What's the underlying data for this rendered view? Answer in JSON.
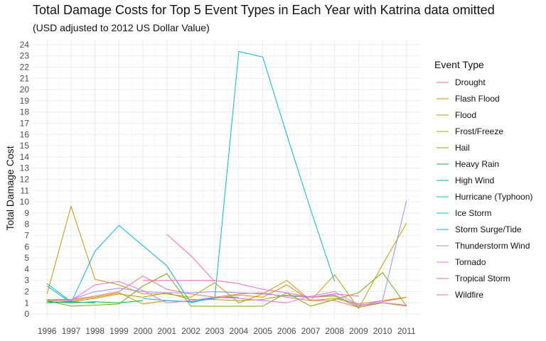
{
  "chart_data": {
    "type": "line",
    "title": "Total Damage Costs for Top 5 Event Types in Each Year with Katrina data omitted",
    "subtitle": "(USD adjusted to 2012 US Dollar Value)",
    "xlabel": "",
    "ylabel": "Total Damage Cost",
    "x": [
      1996,
      1997,
      1998,
      1999,
      2000,
      2001,
      2002,
      2003,
      2004,
      2005,
      2006,
      2007,
      2008,
      2009,
      2010,
      2011
    ],
    "ylim": [
      -0.5,
      24.5
    ],
    "xlim": [
      1995.4,
      2011.6
    ],
    "yticks": [
      0,
      1,
      2,
      3,
      4,
      5,
      6,
      7,
      8,
      9,
      10,
      11,
      12,
      13,
      14,
      15,
      16,
      17,
      18,
      19,
      20,
      21,
      22,
      23,
      24
    ],
    "grid": true,
    "legend": {
      "title": "Event Type",
      "position": "right"
    },
    "series": [
      {
        "name": "Drought",
        "color": "#F8766D",
        "points": [
          [
            1996,
            1.3
          ],
          [
            1997,
            1.3
          ],
          [
            1998,
            1.6
          ],
          [
            1999,
            2.0
          ],
          [
            2000,
            3.4
          ],
          [
            2001,
            2.2
          ],
          [
            2002,
            1.8
          ],
          [
            2003,
            1.5
          ],
          [
            2004,
            1.8
          ],
          [
            2005,
            1.9
          ],
          [
            2006,
            1.5
          ],
          [
            2007,
            1.2
          ],
          [
            2008,
            1.2
          ],
          [
            2009,
            0.6
          ],
          [
            2010,
            1.1
          ],
          [
            2011,
            1.5
          ]
        ]
      },
      {
        "name": "Flash Flood",
        "color": "#E58700",
        "points": [
          [
            1996,
            1.3
          ],
          [
            1997,
            1.2
          ],
          [
            1998,
            1.5
          ],
          [
            1999,
            1.9
          ],
          [
            2000,
            0.9
          ],
          [
            2001,
            1.2
          ],
          [
            2002,
            1.1
          ],
          [
            2003,
            1.4
          ],
          [
            2004,
            1.7
          ],
          [
            2005,
            1.5
          ],
          [
            2006,
            2.6
          ],
          [
            2007,
            1.2
          ],
          [
            2008,
            1.4
          ],
          [
            2009,
            0.9
          ],
          [
            2010,
            1.2
          ],
          [
            2011,
            1.5
          ]
        ]
      },
      {
        "name": "Flood",
        "color": "#C99800",
        "points": [
          [
            1996,
            1.8
          ],
          [
            1997,
            9.6
          ],
          [
            1998,
            3.1
          ],
          [
            1999,
            2.6
          ],
          [
            2000,
            1.8
          ],
          [
            2001,
            1.8
          ],
          [
            2002,
            1.5
          ],
          [
            2003,
            2.8
          ],
          [
            2004,
            1.0
          ],
          [
            2005,
            1.8
          ],
          [
            2006,
            3.0
          ],
          [
            2007,
            1.2
          ],
          [
            2008,
            3.5
          ],
          [
            2009,
            0.5
          ],
          [
            2010,
            4.4
          ],
          [
            2011,
            8.1
          ]
        ]
      },
      {
        "name": "Frost/Freeze",
        "color": "#A3A500",
        "points": [
          [
            1996,
            1.2
          ],
          [
            1997,
            1.1
          ],
          [
            1998,
            1.4
          ],
          [
            1999,
            1.8
          ],
          [
            2000,
            1.5
          ],
          [
            2001,
            1.9
          ],
          [
            2002,
            1.3
          ],
          [
            2003,
            1.3
          ],
          [
            2004,
            1.2
          ],
          [
            2005,
            1.3
          ],
          [
            2006,
            1.7
          ],
          [
            2007,
            1.5
          ],
          [
            2008,
            1.6
          ],
          [
            2009,
            0.6
          ],
          [
            2010,
            1.0
          ],
          [
            2011,
            0.7
          ]
        ]
      },
      {
        "name": "Hail",
        "color": "#6BB100",
        "points": [
          [
            1996,
            1.2
          ],
          [
            1997,
            0.7
          ],
          [
            1998,
            0.8
          ],
          [
            1999,
            0.9
          ],
          [
            2000,
            2.5
          ],
          [
            2001,
            3.6
          ],
          [
            2002,
            0.7
          ],
          [
            2003,
            0.7
          ],
          [
            2004,
            0.7
          ],
          [
            2005,
            0.7
          ],
          [
            2006,
            1.9
          ],
          [
            2007,
            0.7
          ],
          [
            2008,
            1.3
          ],
          [
            2009,
            1.9
          ],
          [
            2010,
            3.7
          ],
          [
            2011,
            0.7
          ]
        ]
      },
      {
        "name": "Heavy Rain",
        "color": "#00BA38",
        "points": [
          [
            1996,
            1.1
          ],
          [
            1997,
            1.0
          ],
          [
            1998,
            1.1
          ],
          [
            1999,
            1.0
          ],
          [
            2000,
            1.2
          ]
        ]
      },
      {
        "name": "High Wind",
        "color": "#00BF7D",
        "points": [
          [
            1996,
            1.0
          ],
          [
            1997,
            1.1
          ],
          [
            1998,
            1.0
          ]
        ]
      },
      {
        "name": "Hurricane (Typhoon)",
        "color": "#00C0AF",
        "points": [
          [
            1996,
            2.7
          ],
          [
            1997,
            1.1
          ],
          [
            1998,
            1.0
          ]
        ]
      },
      {
        "name": "Ice Storm",
        "color": "#00BCD8",
        "points": [
          [
            2000,
            1.4
          ],
          [
            2001,
            1.2
          ],
          [
            2002,
            1.1
          ],
          [
            2003,
            1.4
          ],
          [
            2004,
            23.4
          ],
          [
            2005,
            22.9
          ],
          [
            2006,
            16.0
          ],
          [
            2007,
            9.3
          ],
          [
            2008,
            2.9
          ]
        ]
      },
      {
        "name": "Storm Surge/Tide",
        "color": "#00B0F6",
        "points": [
          [
            1996,
            2.5
          ],
          [
            1997,
            1.0
          ],
          [
            1998,
            5.6
          ],
          [
            1999,
            7.9
          ],
          [
            2000,
            6.1
          ],
          [
            2001,
            4.3
          ],
          [
            2002,
            1.0
          ],
          [
            2003,
            1.5
          ],
          [
            2004,
            1.5
          ]
        ]
      },
      {
        "name": "Thunderstorm Wind",
        "color": "#9590FF",
        "points": [
          [
            1996,
            1.3
          ],
          [
            1997,
            1.3
          ],
          [
            1998,
            2.0
          ],
          [
            1999,
            2.3
          ],
          [
            2000,
            2.0
          ],
          [
            2001,
            1.9
          ],
          [
            2002,
            1.9
          ],
          [
            2003,
            2.0
          ],
          [
            2004,
            1.9
          ],
          [
            2005,
            1.8
          ],
          [
            2006,
            1.6
          ],
          [
            2007,
            1.5
          ],
          [
            2008,
            1.7
          ],
          [
            2009,
            0.7
          ],
          [
            2010,
            1.2
          ],
          [
            2011,
            10.1
          ]
        ]
      },
      {
        "name": "Tornado",
        "color": "#E76BF3",
        "points": [
          [
            1996,
            1.3
          ],
          [
            1997,
            1.2
          ],
          [
            1998,
            2.6
          ],
          [
            1999,
            2.9
          ],
          [
            2000,
            2.1
          ],
          [
            2001,
            1.0
          ],
          [
            2002,
            1.2
          ],
          [
            2003,
            1.5
          ],
          [
            2004,
            1.4
          ],
          [
            2005,
            1.2
          ],
          [
            2006,
            1.0
          ],
          [
            2007,
            1.6
          ],
          [
            2008,
            2.0
          ],
          [
            2009,
            0.8
          ],
          [
            2010,
            1.0
          ],
          [
            2011,
            0.8
          ]
        ]
      },
      {
        "name": "Tropical Storm",
        "color": "#FF62BC",
        "points": [
          [
            2000,
            3.0
          ],
          [
            2001,
            3.0
          ],
          [
            2002,
            3.0
          ],
          [
            2003,
            3.0
          ],
          [
            2004,
            2.7
          ],
          [
            2005,
            2.2
          ],
          [
            2006,
            1.9
          ],
          [
            2007,
            1.5
          ],
          [
            2008,
            1.8
          ],
          [
            2009,
            1.6
          ]
        ]
      },
      {
        "name": "Wildfire",
        "color": "#FF6C91",
        "points": [
          [
            2001,
            7.1
          ],
          [
            2002,
            5.2
          ],
          [
            2003,
            2.9
          ]
        ]
      }
    ]
  }
}
